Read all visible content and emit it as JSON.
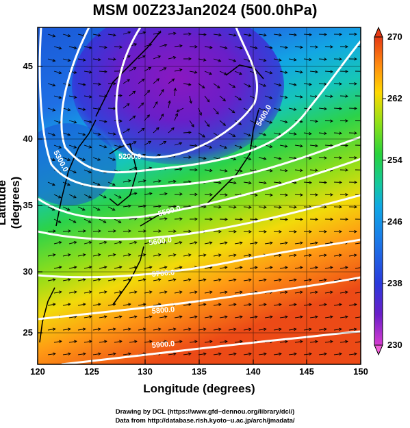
{
  "title": "MSM 00Z23Jan2024 (500.0hPa)",
  "axes": {
    "xlabel": "Longitude (degrees)",
    "ylabel": "Latitude  (degrees)",
    "x_ticks": [
      "120",
      "125",
      "130",
      "135",
      "140",
      "145",
      "150"
    ],
    "y_ticks": [
      "25",
      "30",
      "35",
      "40",
      "45"
    ]
  },
  "colorbar": {
    "ticks": [
      "230",
      "238",
      "246",
      "254",
      "262",
      "270"
    ],
    "colors": [
      "#d63cd0",
      "#6a1ec8",
      "#2a3adc",
      "#10a8e4",
      "#14c8a0",
      "#28d23c",
      "#8ee018",
      "#ffd800",
      "#ff8a10",
      "#e53a14"
    ]
  },
  "contour_labels": [
    "5200.0",
    "5300.0",
    "5400.0",
    "5500.0",
    "5600.0",
    "5700.0",
    "5800.0",
    "5900.0"
  ],
  "credits": {
    "line1": "Drawing by DCL (https://www.gfd−dennou.org/library/dcl/)",
    "line2": "Data from http://database.rish.kyoto−u.ac.jp/arch/jmadata/"
  }
}
